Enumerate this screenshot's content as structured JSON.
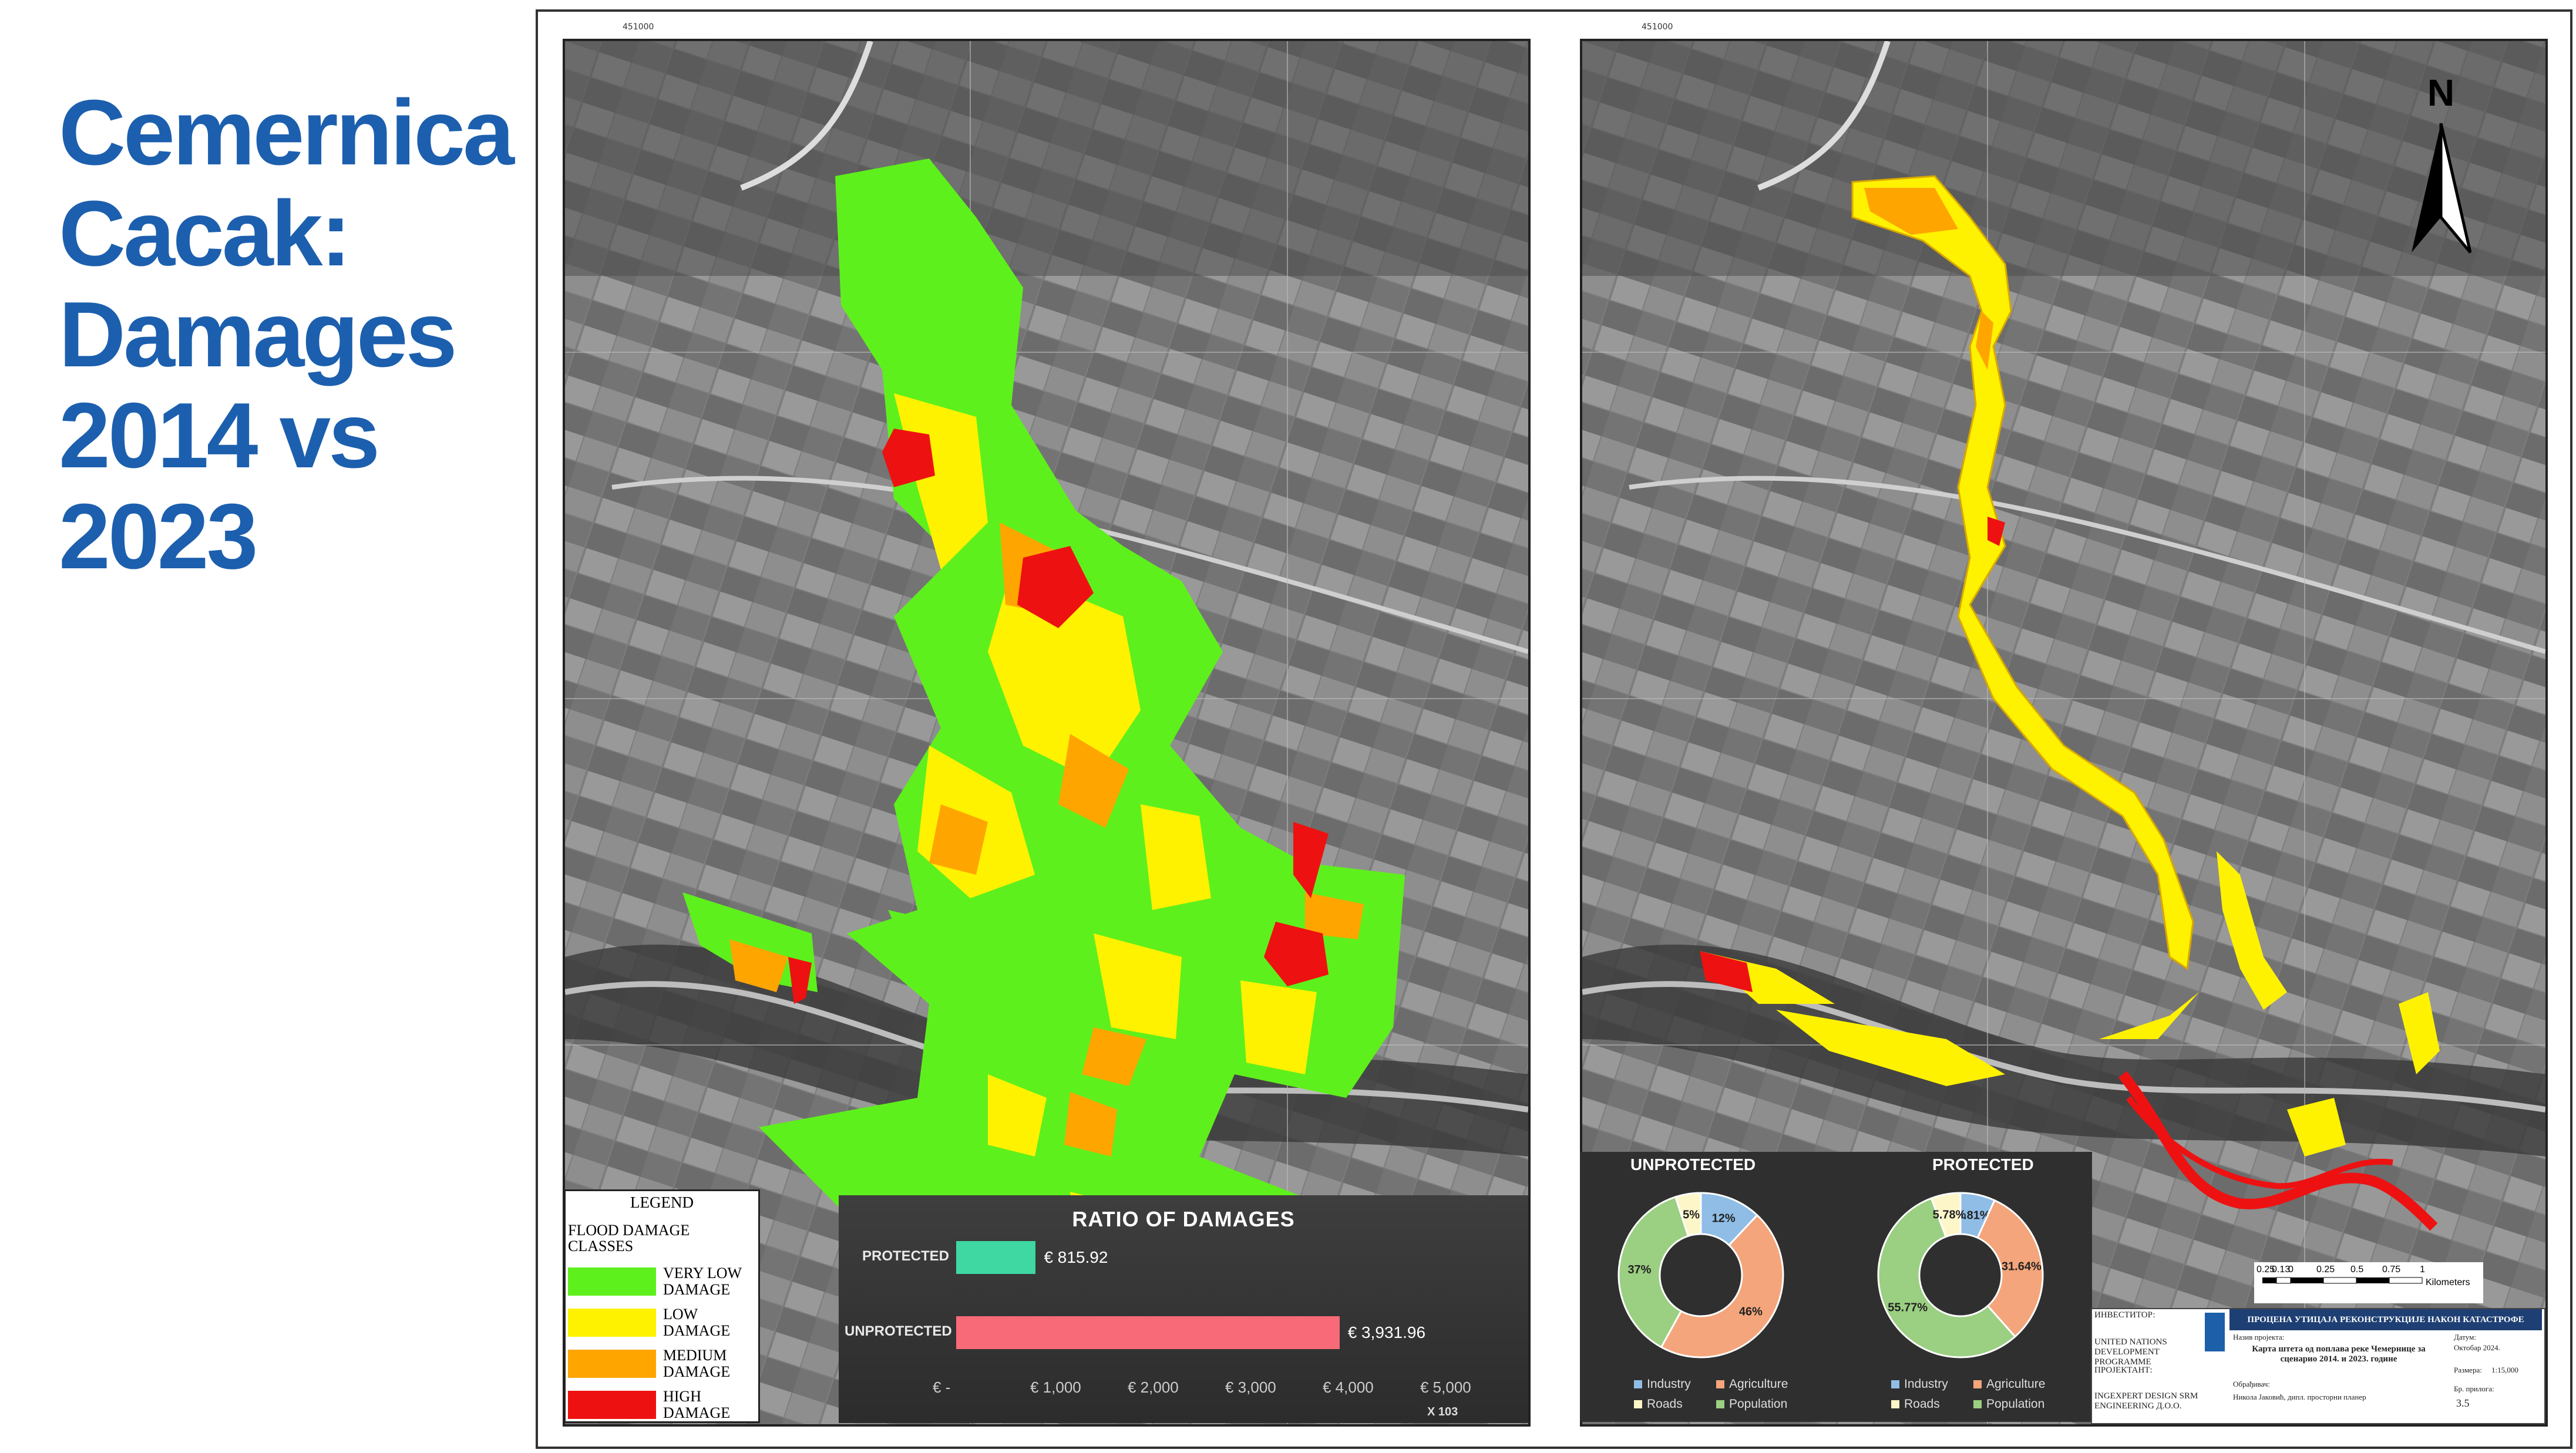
{
  "title": {
    "lines": [
      "Cemernica",
      "Cacak:",
      "Damages",
      "2014 vs",
      "2023"
    ]
  },
  "colors": {
    "title_blue": "#1c5fae",
    "very_low": "#5ef01c",
    "low": "#fff200",
    "medium": "#ffa500",
    "high": "#ee1111",
    "protected_bar": "#3fd8a3",
    "unprotected_bar": "#f86a78",
    "industry": "#8fbde6",
    "agriculture": "#f4a57b",
    "roads": "#fdf6c8",
    "population": "#9bcf82"
  },
  "legend": {
    "title": "LEGEND",
    "subtitle": "FLOOD DAMAGE CLASSES",
    "items": [
      {
        "label": "VERY LOW DAMAGE",
        "color": "#5ef01c"
      },
      {
        "label": "LOW DAMAGE",
        "color": "#fff200"
      },
      {
        "label": "MEDIUM DAMAGE",
        "color": "#ffa500"
      },
      {
        "label": "HIGH DAMAGE",
        "color": "#ee1111"
      }
    ]
  },
  "ratio_chart": {
    "title": "RATIO OF DAMAGES",
    "categories": [
      "PROTECTED",
      "UNPROTECTED"
    ],
    "values": [
      815.92,
      3931.96
    ],
    "value_labels": [
      "€ 815.92",
      "€ 3,931.96"
    ],
    "ticks": [
      "€ -",
      "€ 1,000",
      "€ 2,000",
      "€ 3,000",
      "€ 4,000",
      "€ 5,000"
    ],
    "xlim": [
      0,
      5000
    ],
    "unit_label": "X 103"
  },
  "donut_charts": [
    {
      "title": "UNPROTECTED",
      "slices": [
        {
          "name": "Industry",
          "value": 12,
          "label": "12%"
        },
        {
          "name": "Agriculture",
          "value": 46,
          "label": "46%"
        },
        {
          "name": "Population",
          "value": 37,
          "label": "37%"
        },
        {
          "name": "Roads",
          "value": 5,
          "label": "5%"
        }
      ]
    },
    {
      "title": "PROTECTED",
      "slices": [
        {
          "name": "Industry",
          "value": 6.81,
          "label": "6.81%"
        },
        {
          "name": "Agriculture",
          "value": 31.64,
          "label": "31.64%"
        },
        {
          "name": "Population",
          "value": 55.77,
          "label": "55.77%"
        },
        {
          "name": "Roads",
          "value": 5.78,
          "label": "5.78%"
        }
      ]
    }
  ],
  "donut_legend": [
    "Industry",
    "Agriculture",
    "Roads",
    "Population"
  ],
  "north_label": "N",
  "scale_bar": {
    "ticks": [
      "0.25",
      "0.13",
      "0",
      "0.25",
      "0.5",
      "0.75",
      "1"
    ],
    "unit": "Kilometers"
  },
  "title_block": {
    "investor_label": "ИНВЕСТИТОР:",
    "investor": "UNITED NATIONS DEVELOPMENT PROGRAMME",
    "designer_label": "ПРОЈЕКТАНТ:",
    "designer": "INGEXPERT DESIGN SRM ENGINEERING Д.О.О.",
    "header": "ПРОЦЕНА УТИЦАЈА РЕКОНСТРУКЦИЈЕ НАКОН КАТАСТРОФЕ",
    "project_label": "Назив пројекта:",
    "map_title": "Карта штета од поплава реке Чемернице за сценарио 2014. и 2023. године",
    "date_label": "Датум:",
    "date": "Октобар 2024.",
    "scale_label": "Размера:",
    "scale": "1:15,000",
    "author_label": "Обрађивач:",
    "author": "Никола Јаковић, дипл. просторни планер",
    "sheet_label": "Бр. прилога:",
    "sheet": "3.5"
  }
}
